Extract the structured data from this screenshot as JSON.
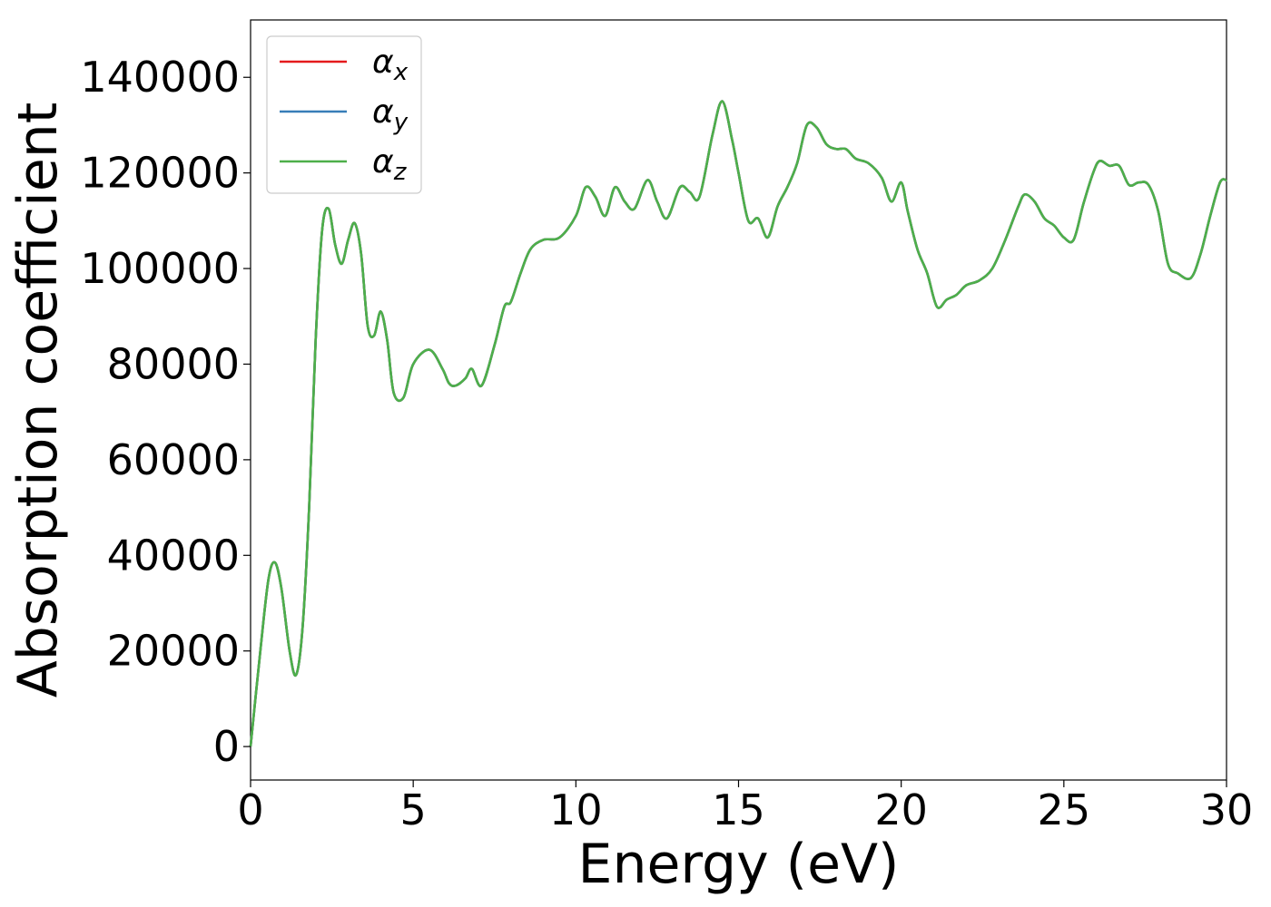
{
  "chart_data": {
    "type": "line",
    "xlabel": "Energy (eV)",
    "ylabel": "Absorption coefficient",
    "xlim": [
      0,
      30
    ],
    "ylim": [
      -7000,
      152000
    ],
    "xticks": [
      0,
      5,
      10,
      15,
      20,
      25,
      30
    ],
    "yticks": [
      0,
      20000,
      40000,
      60000,
      80000,
      100000,
      120000,
      140000
    ],
    "xtick_labels": [
      "0",
      "5",
      "10",
      "15",
      "20",
      "25",
      "30"
    ],
    "ytick_labels": [
      "0",
      "20000",
      "40000",
      "60000",
      "80000",
      "100000",
      "120000",
      "140000"
    ],
    "grid": false,
    "legend_position": "top-left",
    "legend": [
      {
        "base": "α",
        "sub": "x",
        "color": "#e41a1c"
      },
      {
        "base": "α",
        "sub": "y",
        "color": "#377eb8"
      },
      {
        "base": "α",
        "sub": "z",
        "color": "#4daf4a"
      }
    ],
    "series": [
      {
        "name": "αx",
        "color": "#e41a1c",
        "x": [
          0.0,
          0.3,
          0.55,
          0.75,
          0.95,
          1.2,
          1.4,
          1.6,
          1.8,
          2.0,
          2.2,
          2.4,
          2.6,
          2.8,
          3.0,
          3.2,
          3.4,
          3.6,
          3.8,
          4.0,
          4.2,
          4.4,
          4.7,
          5.0,
          5.5,
          5.9,
          6.1,
          6.3,
          6.6,
          6.8,
          7.1,
          7.5,
          7.8,
          8.0,
          8.3,
          8.6,
          9.0,
          9.5,
          10.0,
          10.3,
          10.6,
          10.9,
          11.2,
          11.5,
          11.8,
          12.2,
          12.5,
          12.8,
          13.2,
          13.5,
          13.8,
          14.2,
          14.5,
          14.8,
          15.0,
          15.3,
          15.6,
          15.9,
          16.2,
          16.5,
          16.8,
          17.1,
          17.4,
          17.7,
          18.0,
          18.3,
          18.6,
          19.0,
          19.4,
          19.7,
          20.0,
          20.2,
          20.5,
          20.8,
          21.1,
          21.4,
          21.7,
          22.0,
          22.4,
          22.8,
          23.2,
          23.6,
          23.8,
          24.1,
          24.4,
          24.7,
          25.0,
          25.3,
          25.6,
          25.9,
          26.1,
          26.4,
          26.7,
          27.0,
          27.3,
          27.6,
          27.9,
          28.2,
          28.5,
          28.9,
          29.2,
          29.5,
          29.8,
          30.0
        ],
        "y": [
          0,
          20000,
          35000,
          38500,
          33000,
          20000,
          15000,
          25000,
          50000,
          85000,
          108000,
          112500,
          105000,
          101000,
          106000,
          109500,
          103000,
          88000,
          86000,
          91000,
          85000,
          74000,
          73000,
          80000,
          83000,
          79000,
          76000,
          75500,
          77000,
          79000,
          75500,
          84000,
          92000,
          93000,
          99000,
          104000,
          106000,
          106500,
          111000,
          117000,
          115000,
          111000,
          117000,
          114000,
          112500,
          118500,
          114000,
          110500,
          117000,
          116000,
          115000,
          128000,
          135000,
          127000,
          120000,
          110000,
          110500,
          106500,
          113000,
          117000,
          122000,
          130000,
          129500,
          126000,
          125000,
          125000,
          123000,
          122000,
          119000,
          114000,
          118000,
          112000,
          104000,
          99000,
          92000,
          93500,
          94500,
          96500,
          97500,
          100000,
          106000,
          113000,
          115500,
          114000,
          110500,
          109000,
          106500,
          106000,
          113500,
          120000,
          122500,
          121500,
          121500,
          117500,
          118000,
          117500,
          112000,
          101000,
          99000,
          98000,
          103000,
          111000,
          118000,
          118500
        ]
      },
      {
        "name": "αy",
        "color": "#377eb8",
        "x": [
          0.0,
          0.3,
          0.55,
          0.75,
          0.95,
          1.2,
          1.4,
          1.6,
          1.8,
          2.0,
          2.2,
          2.4,
          2.6,
          2.8,
          3.0,
          3.2,
          3.4,
          3.6,
          3.8,
          4.0,
          4.2,
          4.4,
          4.7,
          5.0,
          5.5,
          5.9,
          6.1,
          6.3,
          6.6,
          6.8,
          7.1,
          7.5,
          7.8,
          8.0,
          8.3,
          8.6,
          9.0,
          9.5,
          10.0,
          10.3,
          10.6,
          10.9,
          11.2,
          11.5,
          11.8,
          12.2,
          12.5,
          12.8,
          13.2,
          13.5,
          13.8,
          14.2,
          14.5,
          14.8,
          15.0,
          15.3,
          15.6,
          15.9,
          16.2,
          16.5,
          16.8,
          17.1,
          17.4,
          17.7,
          18.0,
          18.3,
          18.6,
          19.0,
          19.4,
          19.7,
          20.0,
          20.2,
          20.5,
          20.8,
          21.1,
          21.4,
          21.7,
          22.0,
          22.4,
          22.8,
          23.2,
          23.6,
          23.8,
          24.1,
          24.4,
          24.7,
          25.0,
          25.3,
          25.6,
          25.9,
          26.1,
          26.4,
          26.7,
          27.0,
          27.3,
          27.6,
          27.9,
          28.2,
          28.5,
          28.9,
          29.2,
          29.5,
          29.8,
          30.0
        ],
        "y": [
          0,
          20000,
          35000,
          38500,
          33000,
          20000,
          15000,
          25000,
          50000,
          85000,
          108000,
          112500,
          105000,
          101000,
          106000,
          109500,
          103000,
          88000,
          86000,
          91000,
          85000,
          74000,
          73000,
          80000,
          83000,
          79000,
          76000,
          75500,
          77000,
          79000,
          75500,
          84000,
          92000,
          93000,
          99000,
          104000,
          106000,
          106500,
          111000,
          117000,
          115000,
          111000,
          117000,
          114000,
          112500,
          118500,
          114000,
          110500,
          117000,
          116000,
          115000,
          128000,
          135000,
          127000,
          120000,
          110000,
          110500,
          106500,
          113000,
          117000,
          122000,
          130000,
          129500,
          126000,
          125000,
          125000,
          123000,
          122000,
          119000,
          114000,
          118000,
          112000,
          104000,
          99000,
          92000,
          93500,
          94500,
          96500,
          97500,
          100000,
          106000,
          113000,
          115500,
          114000,
          110500,
          109000,
          106500,
          106000,
          113500,
          120000,
          122500,
          121500,
          121500,
          117500,
          118000,
          117500,
          112000,
          101000,
          99000,
          98000,
          103000,
          111000,
          118000,
          118500
        ]
      },
      {
        "name": "αz",
        "color": "#4daf4a",
        "x": [
          0.0,
          0.3,
          0.55,
          0.75,
          0.95,
          1.2,
          1.4,
          1.6,
          1.8,
          2.0,
          2.2,
          2.4,
          2.6,
          2.8,
          3.0,
          3.2,
          3.4,
          3.6,
          3.8,
          4.0,
          4.2,
          4.4,
          4.7,
          5.0,
          5.5,
          5.9,
          6.1,
          6.3,
          6.6,
          6.8,
          7.1,
          7.5,
          7.8,
          8.0,
          8.3,
          8.6,
          9.0,
          9.5,
          10.0,
          10.3,
          10.6,
          10.9,
          11.2,
          11.5,
          11.8,
          12.2,
          12.5,
          12.8,
          13.2,
          13.5,
          13.8,
          14.2,
          14.5,
          14.8,
          15.0,
          15.3,
          15.6,
          15.9,
          16.2,
          16.5,
          16.8,
          17.1,
          17.4,
          17.7,
          18.0,
          18.3,
          18.6,
          19.0,
          19.4,
          19.7,
          20.0,
          20.2,
          20.5,
          20.8,
          21.1,
          21.4,
          21.7,
          22.0,
          22.4,
          22.8,
          23.2,
          23.6,
          23.8,
          24.1,
          24.4,
          24.7,
          25.0,
          25.3,
          25.6,
          25.9,
          26.1,
          26.4,
          26.7,
          27.0,
          27.3,
          27.6,
          27.9,
          28.2,
          28.5,
          28.9,
          29.2,
          29.5,
          29.8,
          30.0
        ],
        "y": [
          0,
          20000,
          35000,
          38500,
          33000,
          20000,
          15000,
          25000,
          50000,
          85000,
          108000,
          112500,
          105000,
          101000,
          106000,
          109500,
          103000,
          88000,
          86000,
          91000,
          85000,
          74000,
          73000,
          80000,
          83000,
          79000,
          76000,
          75500,
          77000,
          79000,
          75500,
          84000,
          92000,
          93000,
          99000,
          104000,
          106000,
          106500,
          111000,
          117000,
          115000,
          111000,
          117000,
          114000,
          112500,
          118500,
          114000,
          110500,
          117000,
          116000,
          115000,
          128000,
          135000,
          127000,
          120000,
          110000,
          110500,
          106500,
          113000,
          117000,
          122000,
          130000,
          129500,
          126000,
          125000,
          125000,
          123000,
          122000,
          119000,
          114000,
          118000,
          112000,
          104000,
          99000,
          92000,
          93500,
          94500,
          96500,
          97500,
          100000,
          106000,
          113000,
          115500,
          114000,
          110500,
          109000,
          106500,
          106000,
          113500,
          120000,
          122500,
          121500,
          121500,
          117500,
          118000,
          117500,
          112000,
          101000,
          99000,
          98000,
          103000,
          111000,
          118000,
          118500
        ]
      }
    ]
  }
}
